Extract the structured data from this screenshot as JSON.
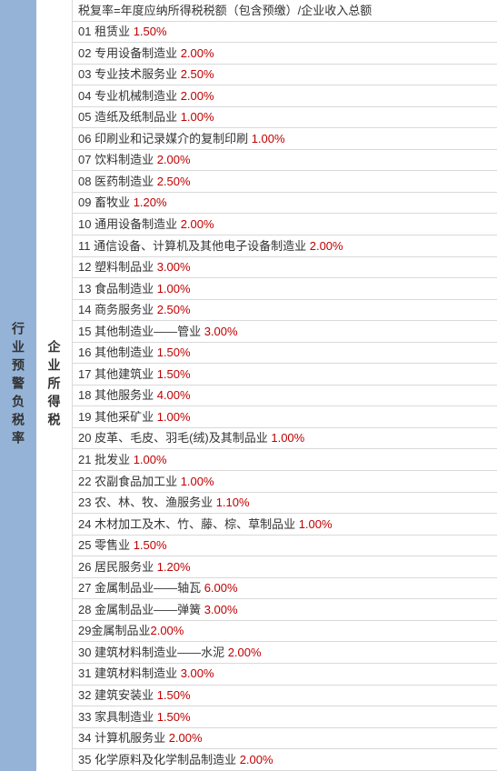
{
  "leftHeader": "行业预警负税率",
  "midHeader": "企业所得税",
  "formula": "税复率=年度应纳所得税税额（包含预缴）/企业收入总额",
  "rows": [
    {
      "num": "01",
      "label": "租赁业",
      "rate": "1.50%"
    },
    {
      "num": "02",
      "label": "专用设备制造业",
      "rate": "2.00%"
    },
    {
      "num": "03",
      "label": "专业技术服务业",
      "rate": "2.50%"
    },
    {
      "num": "04",
      "label": "专业机械制造业",
      "rate": "2.00%"
    },
    {
      "num": "05",
      "label": "造纸及纸制品业",
      "rate": "1.00%"
    },
    {
      "num": "06",
      "label": "印刷业和记录媒介的复制印刷",
      "rate": "1.00%"
    },
    {
      "num": "07",
      "label": "饮料制造业",
      "rate": "2.00%"
    },
    {
      "num": "08",
      "label": "医药制造业",
      "rate": "2.50%"
    },
    {
      "num": "09",
      "label": "畜牧业",
      "rate": "1.20%"
    },
    {
      "num": "10",
      "label": "通用设备制造业",
      "rate": "2.00%"
    },
    {
      "num": "11",
      "label": "通信设备、计算机及其他电子设备制造业",
      "rate": "2.00%"
    },
    {
      "num": "12",
      "label": "塑料制品业",
      "rate": "3.00%"
    },
    {
      "num": "13",
      "label": "食品制造业",
      "rate": "1.00%"
    },
    {
      "num": "14",
      "label": "商务服务业",
      "rate": "2.50%"
    },
    {
      "num": "15",
      "label": "其他制造业——管业",
      "rate": "3.00%"
    },
    {
      "num": "16",
      "label": "其他制造业",
      "rate": "1.50%"
    },
    {
      "num": "17",
      "label": "其他建筑业",
      "rate": "1.50%"
    },
    {
      "num": "18",
      "label": "其他服务业",
      "rate": "4.00%"
    },
    {
      "num": "19",
      "label": "其他采矿业",
      "rate": "1.00%"
    },
    {
      "num": "20",
      "label": "皮革、毛皮、羽毛(绒)及其制品业",
      "rate": "1.00%"
    },
    {
      "num": "21",
      "label": "批发业",
      "rate": "1.00%"
    },
    {
      "num": "22",
      "label": "农副食品加工业",
      "rate": "1.00%"
    },
    {
      "num": "23",
      "label": "农、林、牧、渔服务业",
      "rate": "1.10%"
    },
    {
      "num": "24",
      "label": "木材加工及木、竹、藤、棕、草制品业",
      "rate": "1.00%"
    },
    {
      "num": "25",
      "label": "零售业",
      "rate": "1.50%"
    },
    {
      "num": "26",
      "label": "居民服务业",
      "rate": "1.20%"
    },
    {
      "num": "27",
      "label": "金属制品业——轴瓦",
      "rate": "6.00%"
    },
    {
      "num": "28",
      "label": "金属制品业——弹簧",
      "rate": "3.00%"
    },
    {
      "num": "29",
      "label": "金属制品业",
      "rate": "2.00%",
      "nospace": true
    },
    {
      "num": "30",
      "label": "建筑材料制造业——水泥",
      "rate": "2.00%"
    },
    {
      "num": "31",
      "label": "建筑材料制造业",
      "rate": "3.00%"
    },
    {
      "num": "32",
      "label": "建筑安装业",
      "rate": "1.50%"
    },
    {
      "num": "33",
      "label": "家具制造业",
      "rate": "1.50%"
    },
    {
      "num": "34",
      "label": "计算机服务业",
      "rate": "2.00%"
    },
    {
      "num": "35",
      "label": "化学原料及化学制品制造业",
      "rate": "2.00%"
    }
  ],
  "colors": {
    "leftBg": "#95b3d7",
    "rateColor": "#c00000",
    "textColor": "#333333",
    "borderColor": "#d9d9d9"
  }
}
